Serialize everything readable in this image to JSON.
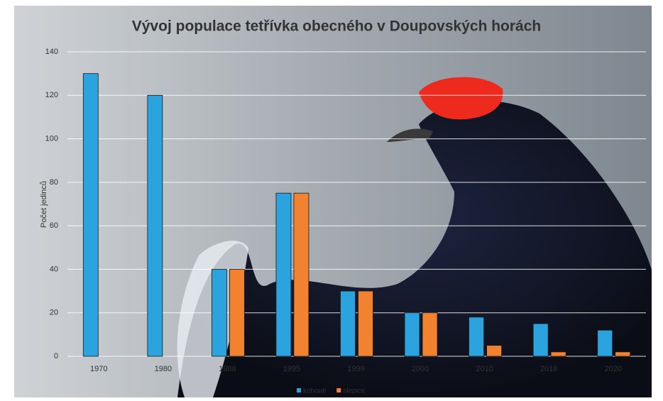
{
  "chart_data": {
    "type": "bar",
    "title": "Vývoj populace tetřívka obecného v Doupovských horách",
    "y_label": "Počet jedinců",
    "categories": [
      "1970",
      "1980",
      "1988",
      "1995",
      "1999",
      "2000",
      "2010",
      "2018",
      "2020"
    ],
    "series": [
      {
        "name": "kohouti",
        "color": "#2aa3de",
        "values": [
          130,
          120,
          40,
          75,
          30,
          20,
          18,
          15,
          12
        ]
      },
      {
        "name": "slepice",
        "color": "#f28230",
        "values": [
          null,
          null,
          40,
          75,
          30,
          20,
          5,
          2,
          2
        ]
      }
    ],
    "ylim": [
      0,
      140
    ],
    "yticks": [
      0,
      20,
      40,
      60,
      80,
      100,
      120,
      140
    ],
    "grid": true,
    "legend": "bottom"
  }
}
